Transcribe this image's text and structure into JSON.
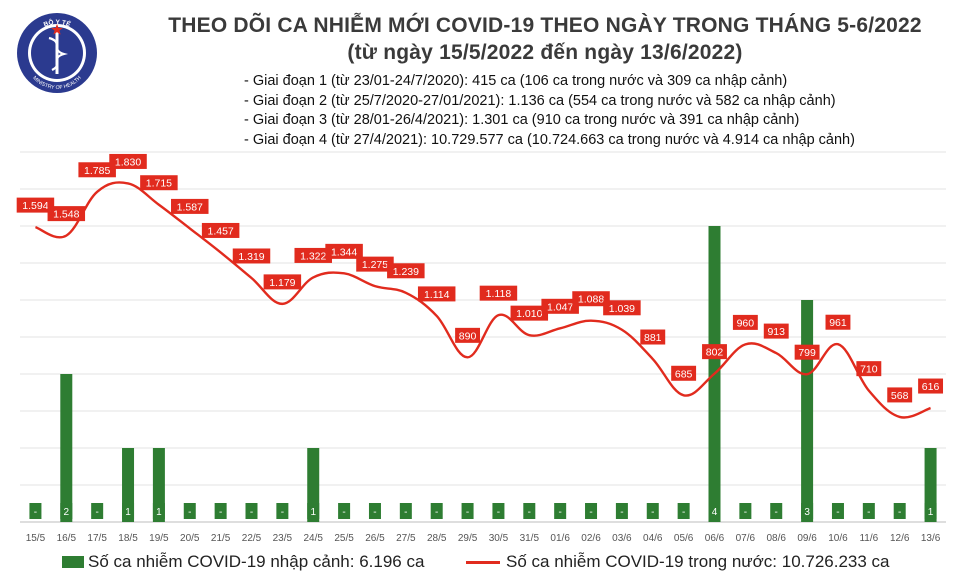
{
  "header": {
    "title_line1": "THEO DÕI CA NHIỄM MỚI COVID-19 THEO NGÀY TRONG THÁNG 5-6/2022",
    "title_line2": "(từ ngày 15/5/2022 đến ngày 13/6/2022)",
    "phases": [
      "- Giai đoạn 1 (từ 23/01-24/7/2020): 415 ca (106 ca trong nước và 309 ca nhập cảnh)",
      "- Giai đoạn 2 (từ 25/7/2020-27/01/2021): 1.136 ca (554 ca trong nước và 582 ca nhập cảnh)",
      "- Giai đoạn 3 (từ 28/01-26/4/2021): 1.301 ca (910 ca trong nước và 391 ca nhập cảnh)",
      "- Giai đoạn 4 (từ 27/4/2021): 10.729.577 ca (10.724.663 ca trong nước và 4.914 ca nhập cảnh)"
    ]
  },
  "logo": {
    "top_text": "BỘ Y TẾ",
    "bottom_text": "MINISTRY OF HEALTH",
    "color": "#2b3a8f"
  },
  "colors": {
    "bar": "#2e7d32",
    "line": "#e12b1e",
    "label_bg": "#e12b1e",
    "label_text": "#ffffff"
  },
  "chart_data": {
    "type": "bar+line",
    "categories": [
      "15/5",
      "16/5",
      "17/5",
      "18/5",
      "19/5",
      "20/5",
      "21/5",
      "22/5",
      "23/5",
      "24/5",
      "25/5",
      "26/5",
      "27/5",
      "28/5",
      "29/5",
      "30/5",
      "31/5",
      "01/6",
      "02/6",
      "03/6",
      "04/6",
      "05/6",
      "06/6",
      "07/6",
      "08/6",
      "09/6",
      "10/6",
      "11/6",
      "12/6",
      "13/6"
    ],
    "series": [
      {
        "name": "Số ca nhiễm COVID-19 nhập cảnh: 6.196 ca",
        "type": "bar",
        "axis": "right",
        "values": [
          0,
          2,
          0,
          1,
          1,
          0,
          0,
          0,
          0,
          1,
          0,
          0,
          0,
          0,
          0,
          0,
          0,
          0,
          0,
          0,
          0,
          0,
          4,
          0,
          0,
          3,
          0,
          0,
          0,
          1
        ],
        "labels": [
          "-",
          "2",
          "-",
          "1",
          "1",
          "-",
          "-",
          "-",
          "-",
          "1",
          "-",
          "-",
          "-",
          "-",
          "-",
          "-",
          "-",
          "-",
          "-",
          "-",
          "-",
          "-",
          "4",
          "-",
          "-",
          "3",
          "-",
          "-",
          "-",
          "1"
        ]
      },
      {
        "name": "Số ca nhiễm COVID-19 trong nước: 10.726.233 ca",
        "type": "line",
        "axis": "left",
        "values": [
          1594,
          1548,
          1785,
          1830,
          1715,
          1587,
          1457,
          1319,
          1179,
          1322,
          1344,
          1275,
          1239,
          1114,
          890,
          1118,
          1010,
          1047,
          1088,
          1039,
          881,
          685,
          802,
          960,
          913,
          799,
          961,
          710,
          568,
          616
        ],
        "labels": [
          "1.594",
          "1.548",
          "1.785",
          "1.830",
          "1.715",
          "1.587",
          "1.457",
          "1.319",
          "1.179",
          "1.322",
          "1.344",
          "1.275",
          "1.239",
          "1.114",
          "890",
          "1.118",
          "1.010",
          "1.047",
          "1.088",
          "1.039",
          "881",
          "685",
          "802",
          "960",
          "913",
          "799",
          "961",
          "710",
          "568",
          "616"
        ]
      }
    ],
    "ylim_left": [
      0,
      2000
    ],
    "ylim_right": [
      0,
      5
    ],
    "grid": "horizontal",
    "legend_position": "bottom"
  }
}
